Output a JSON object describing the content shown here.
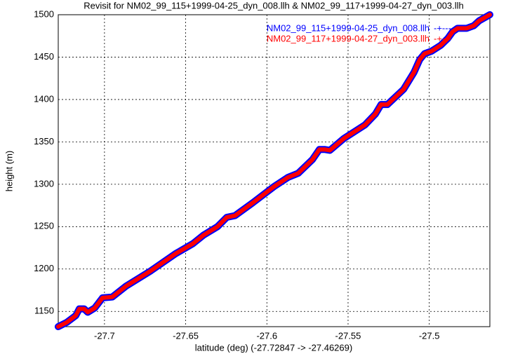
{
  "chart_data": {
    "type": "line",
    "title": "Revisit for NM02_99_115+1999-04-25_dyn_008.llh & NM02_99_117+1999-04-27_dyn_003.llh",
    "x_label": "latitude (deg) (-27.72847 -> -27.46269)",
    "y_label": "height (m)",
    "xlim": [
      -27.72847,
      -27.46269
    ],
    "ylim": [
      1132,
      1500
    ],
    "xticks": [
      -27.7,
      -27.65,
      -27.6,
      -27.55,
      -27.5
    ],
    "yticks": [
      1150,
      1200,
      1250,
      1300,
      1350,
      1400,
      1450,
      1500
    ],
    "grid": true,
    "legend": "top-right",
    "legend_sample": "-+---",
    "x": [
      -27.7285,
      -27.7233,
      -27.7177,
      -27.7155,
      -27.7125,
      -27.7103,
      -27.706,
      -27.7012,
      -27.6952,
      -27.6866,
      -27.6714,
      -27.6563,
      -27.6455,
      -27.639,
      -27.6304,
      -27.6247,
      -27.6196,
      -27.6088,
      -27.5958,
      -27.5871,
      -27.5807,
      -27.572,
      -27.5677,
      -27.5642,
      -27.5612,
      -27.5526,
      -27.5396,
      -27.5331,
      -27.5297,
      -27.5258,
      -27.5158,
      -27.5094,
      -27.5059,
      -27.5029,
      -27.4986,
      -27.4929,
      -27.4886,
      -27.4856,
      -27.4826,
      -27.4769,
      -27.4726,
      -27.4692,
      -27.4627
    ],
    "series": [
      {
        "name": "NM02_99_115+1999-04-25_dyn_008.llh",
        "color": "#0000ff",
        "values": [
          1132,
          1137,
          1145,
          1153,
          1153,
          1149,
          1154,
          1166,
          1167,
          1180,
          1198,
          1218,
          1230,
          1240,
          1250,
          1261,
          1263,
          1278,
          1297,
          1308,
          1313,
          1329,
          1341,
          1341,
          1340,
          1354,
          1370,
          1383,
          1394,
          1394,
          1412,
          1432,
          1447,
          1454,
          1457,
          1464,
          1472,
          1480,
          1484,
          1484,
          1487,
          1493,
          1500
        ]
      },
      {
        "name": "NM02_99_117+1999-04-27_dyn_003.llh",
        "color": "#ff0000",
        "values": [
          1132,
          1137,
          1145,
          1153,
          1153,
          1149,
          1154,
          1166,
          1167,
          1180,
          1198,
          1218,
          1230,
          1240,
          1250,
          1261,
          1263,
          1278,
          1297,
          1308,
          1313,
          1329,
          1341,
          1341,
          1340,
          1354,
          1370,
          1383,
          1394,
          1394,
          1412,
          1432,
          1447,
          1454,
          1457,
          1464,
          1472,
          1480,
          1484,
          1484,
          1487,
          1493,
          1500
        ]
      }
    ]
  }
}
